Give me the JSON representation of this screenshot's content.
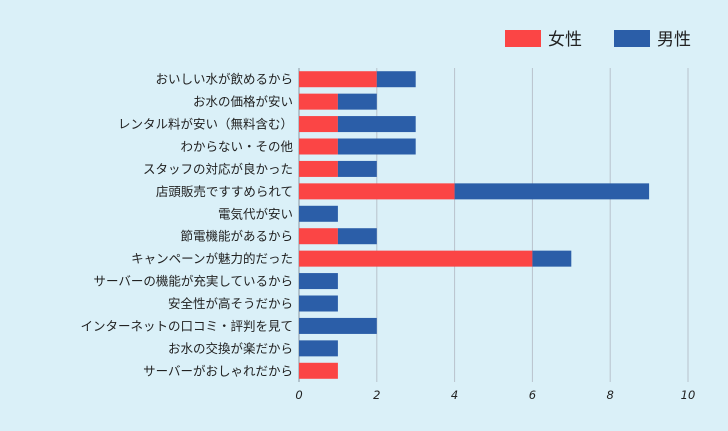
{
  "chart_data": {
    "type": "bar",
    "orientation": "horizontal",
    "stacked": true,
    "categories": [
      "おいしい水が飲めるから",
      "お水の価格が安い",
      "レンタル料が安い（無料含む）",
      "わからない・その他",
      "スタッフの対応が良かった",
      "店頭販売ですすめられて",
      "電気代が安い",
      "節電機能があるから",
      "キャンペーンが魅力的だった",
      "サーバーの機能が充実しているから",
      "安全性が高そうだから",
      "インターネットの口コミ・評判を見て",
      "お水の交換が楽だから",
      "サーバーがおしゃれだから"
    ],
    "series": [
      {
        "name": "女性",
        "color": "#fb4545",
        "values": [
          2,
          1,
          1,
          1,
          1,
          4,
          0,
          1,
          6,
          0,
          0,
          0,
          0,
          1
        ]
      },
      {
        "name": "男性",
        "color": "#2b5ea8",
        "values": [
          1,
          1,
          2,
          2,
          1,
          5,
          1,
          1,
          1,
          1,
          1,
          2,
          1,
          0
        ]
      }
    ],
    "xlim": [
      0,
      10
    ],
    "xticks": [
      0,
      2,
      4,
      6,
      8,
      10
    ],
    "grid": true,
    "legend_position": "top-right",
    "title": "",
    "xlabel": "",
    "ylabel": ""
  }
}
